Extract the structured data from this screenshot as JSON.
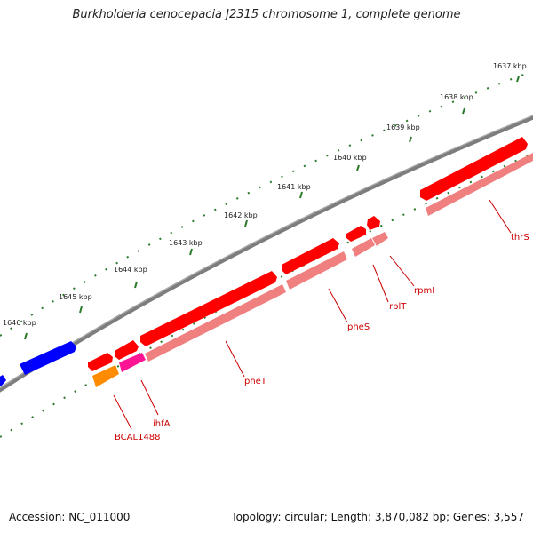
{
  "title": "Burkholderia cenocepacia J2315 chromosome 1, complete genome",
  "footer": {
    "accession": "Accession: NC_011000",
    "summary": "Topology: circular; Length: 3,870,082 bp; Genes: 3,557"
  },
  "ruler_labels": [
    "1637 kbp",
    "1638 kbp",
    "1639 kbp",
    "1640 kbp",
    "1641 kbp",
    "1642 kbp",
    "1643 kbp",
    "1644 kbp",
    "1645 kbp",
    "1646 kbp"
  ],
  "gene_labels": [
    "thrS",
    "rpmI",
    "rplT",
    "pheS",
    "pheT",
    "ihfA",
    "BCAL1488"
  ],
  "colors": {
    "backbone": "#808080",
    "ruler_tick": "#2a7a2a",
    "cds": "#ff0000",
    "cds_light": "#f08080",
    "blue_gene": "#0000ff",
    "ihfA_feature": "#ff1493",
    "bcal_feature": "#ff8c00",
    "label": "#cc0000"
  }
}
